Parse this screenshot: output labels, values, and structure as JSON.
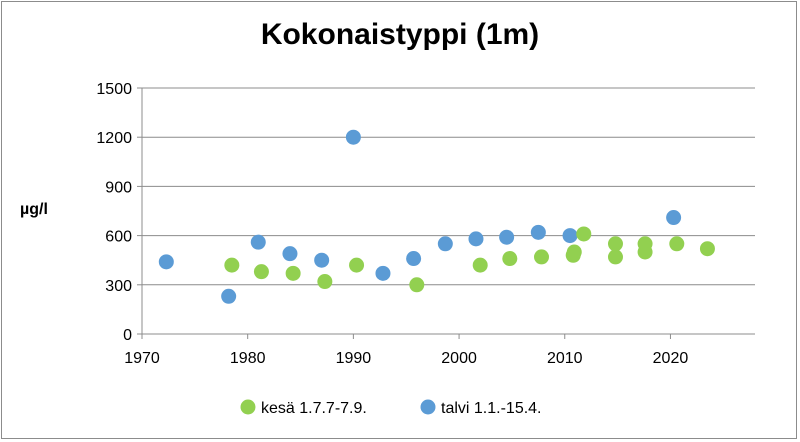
{
  "chart_data": {
    "type": "scatter",
    "title": "Kokonaistyppi (1m)",
    "xlabel": "",
    "ylabel": "µg/l",
    "xlim": [
      1970,
      2028
    ],
    "ylim": [
      0,
      1500
    ],
    "xticks": [
      1970,
      1980,
      1990,
      2000,
      2010,
      2020
    ],
    "yticks": [
      0,
      300,
      600,
      900,
      1200,
      1500
    ],
    "grid": "horizontal",
    "legend_position": "bottom",
    "series": [
      {
        "name": "kesä 1.7.7-7.9.",
        "color": "#92d050",
        "points": [
          {
            "x": 1978.5,
            "y": 420
          },
          {
            "x": 1981.3,
            "y": 380
          },
          {
            "x": 1984.3,
            "y": 370
          },
          {
            "x": 1987.3,
            "y": 320
          },
          {
            "x": 1990.3,
            "y": 420
          },
          {
            "x": 1996.0,
            "y": 300
          },
          {
            "x": 2002.0,
            "y": 420
          },
          {
            "x": 2004.8,
            "y": 460
          },
          {
            "x": 2007.8,
            "y": 470
          },
          {
            "x": 2010.8,
            "y": 480
          },
          {
            "x": 2010.9,
            "y": 500
          },
          {
            "x": 2011.8,
            "y": 610
          },
          {
            "x": 2014.8,
            "y": 470
          },
          {
            "x": 2014.8,
            "y": 550
          },
          {
            "x": 2017.6,
            "y": 500
          },
          {
            "x": 2017.6,
            "y": 550
          },
          {
            "x": 2020.6,
            "y": 550
          },
          {
            "x": 2023.5,
            "y": 520
          }
        ]
      },
      {
        "name": "talvi 1.1.-15.4.",
        "color": "#5b9bd5",
        "points": [
          {
            "x": 1972.3,
            "y": 440
          },
          {
            "x": 1978.2,
            "y": 230
          },
          {
            "x": 1981.0,
            "y": 560
          },
          {
            "x": 1984.0,
            "y": 490
          },
          {
            "x": 1987.0,
            "y": 450
          },
          {
            "x": 1990.0,
            "y": 1200
          },
          {
            "x": 1992.8,
            "y": 370
          },
          {
            "x": 1995.7,
            "y": 460
          },
          {
            "x": 1998.7,
            "y": 550
          },
          {
            "x": 2001.6,
            "y": 580
          },
          {
            "x": 2004.5,
            "y": 590
          },
          {
            "x": 2007.5,
            "y": 620
          },
          {
            "x": 2010.5,
            "y": 600
          },
          {
            "x": 2020.3,
            "y": 710
          }
        ]
      }
    ]
  }
}
